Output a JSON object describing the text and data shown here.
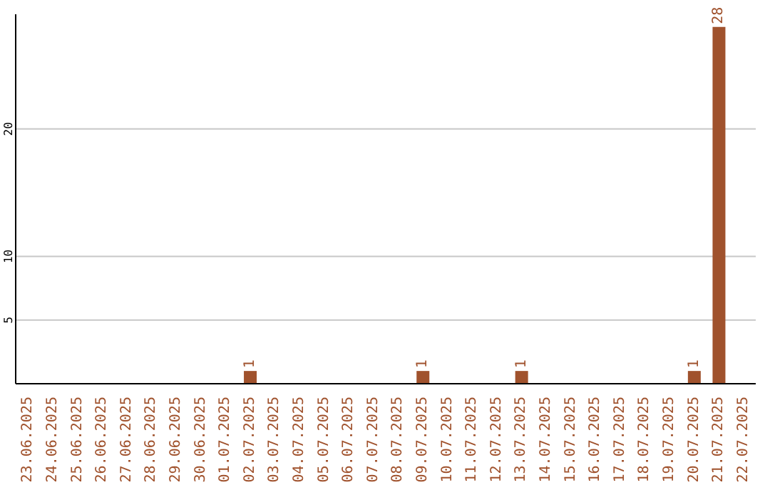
{
  "chart_data": {
    "type": "bar",
    "categories": [
      "23.06.2025",
      "24.06.2025",
      "25.06.2025",
      "26.06.2025",
      "27.06.2025",
      "28.06.2025",
      "29.06.2025",
      "30.06.2025",
      "01.07.2025",
      "02.07.2025",
      "03.07.2025",
      "04.07.2025",
      "05.07.2025",
      "06.07.2025",
      "07.07.2025",
      "08.07.2025",
      "09.07.2025",
      "10.07.2025",
      "11.07.2025",
      "12.07.2025",
      "13.07.2025",
      "14.07.2025",
      "15.07.2025",
      "16.07.2025",
      "17.07.2025",
      "18.07.2025",
      "19.07.2025",
      "20.07.2025",
      "21.07.2025",
      "22.07.2025"
    ],
    "values": [
      null,
      null,
      null,
      null,
      null,
      null,
      null,
      null,
      null,
      1,
      null,
      null,
      null,
      null,
      null,
      null,
      1,
      null,
      null,
      null,
      1,
      null,
      null,
      null,
      null,
      null,
      null,
      1,
      28,
      null
    ],
    "color": "#a0522d",
    "ylim": [
      0,
      29
    ],
    "yticks": [
      5,
      10,
      20
    ],
    "grid": "y",
    "data_labels": true
  }
}
